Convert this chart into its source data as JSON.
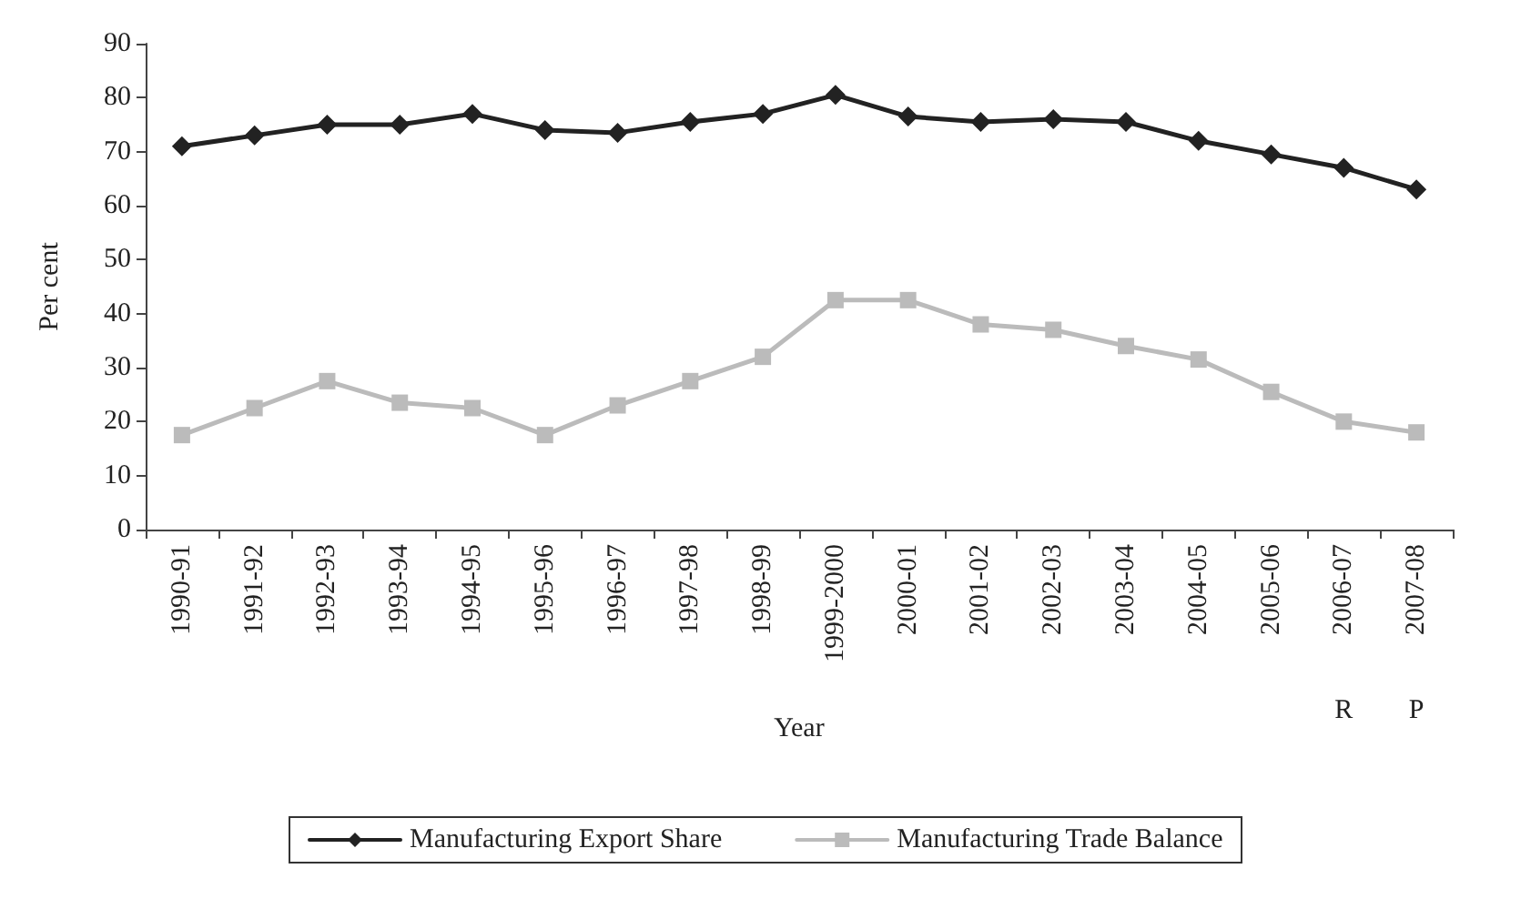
{
  "chart_data": {
    "type": "line",
    "xlabel": "Year",
    "ylabel": "Per cent",
    "categories": [
      "1990-91",
      "1991-92",
      "1992-93",
      "1993-94",
      "1994-95",
      "1995-96",
      "1996-97",
      "1997-98",
      "1998-99",
      "1999-2000",
      "2000-01",
      "2001-02",
      "2002-03",
      "2003-04",
      "2004-05",
      "2005-06",
      "2006-07",
      "2007-08"
    ],
    "series": [
      {
        "name": "Manufacturing Export Share",
        "color": "#222222",
        "marker": "diamond",
        "values": [
          71,
          73,
          75,
          75,
          77,
          74,
          73.5,
          75.5,
          77,
          80.5,
          76.5,
          75.5,
          76,
          75.5,
          72,
          69.5,
          67,
          63
        ]
      },
      {
        "name": "Manufacturing Trade Balance",
        "color": "#bbbbbb",
        "marker": "square",
        "values": [
          17.5,
          22.5,
          27.5,
          23.5,
          22.5,
          17.5,
          23,
          27.5,
          32,
          42.5,
          42.5,
          38,
          37,
          34,
          31.5,
          25.5,
          20,
          18
        ]
      }
    ],
    "annotations": [
      "R",
      "P"
    ],
    "ylim": [
      0,
      90
    ],
    "yticks": [
      0,
      10,
      20,
      30,
      40,
      50,
      60,
      70,
      80,
      90
    ],
    "grid": false,
    "legend": "bottom",
    "line_style": "solid"
  }
}
